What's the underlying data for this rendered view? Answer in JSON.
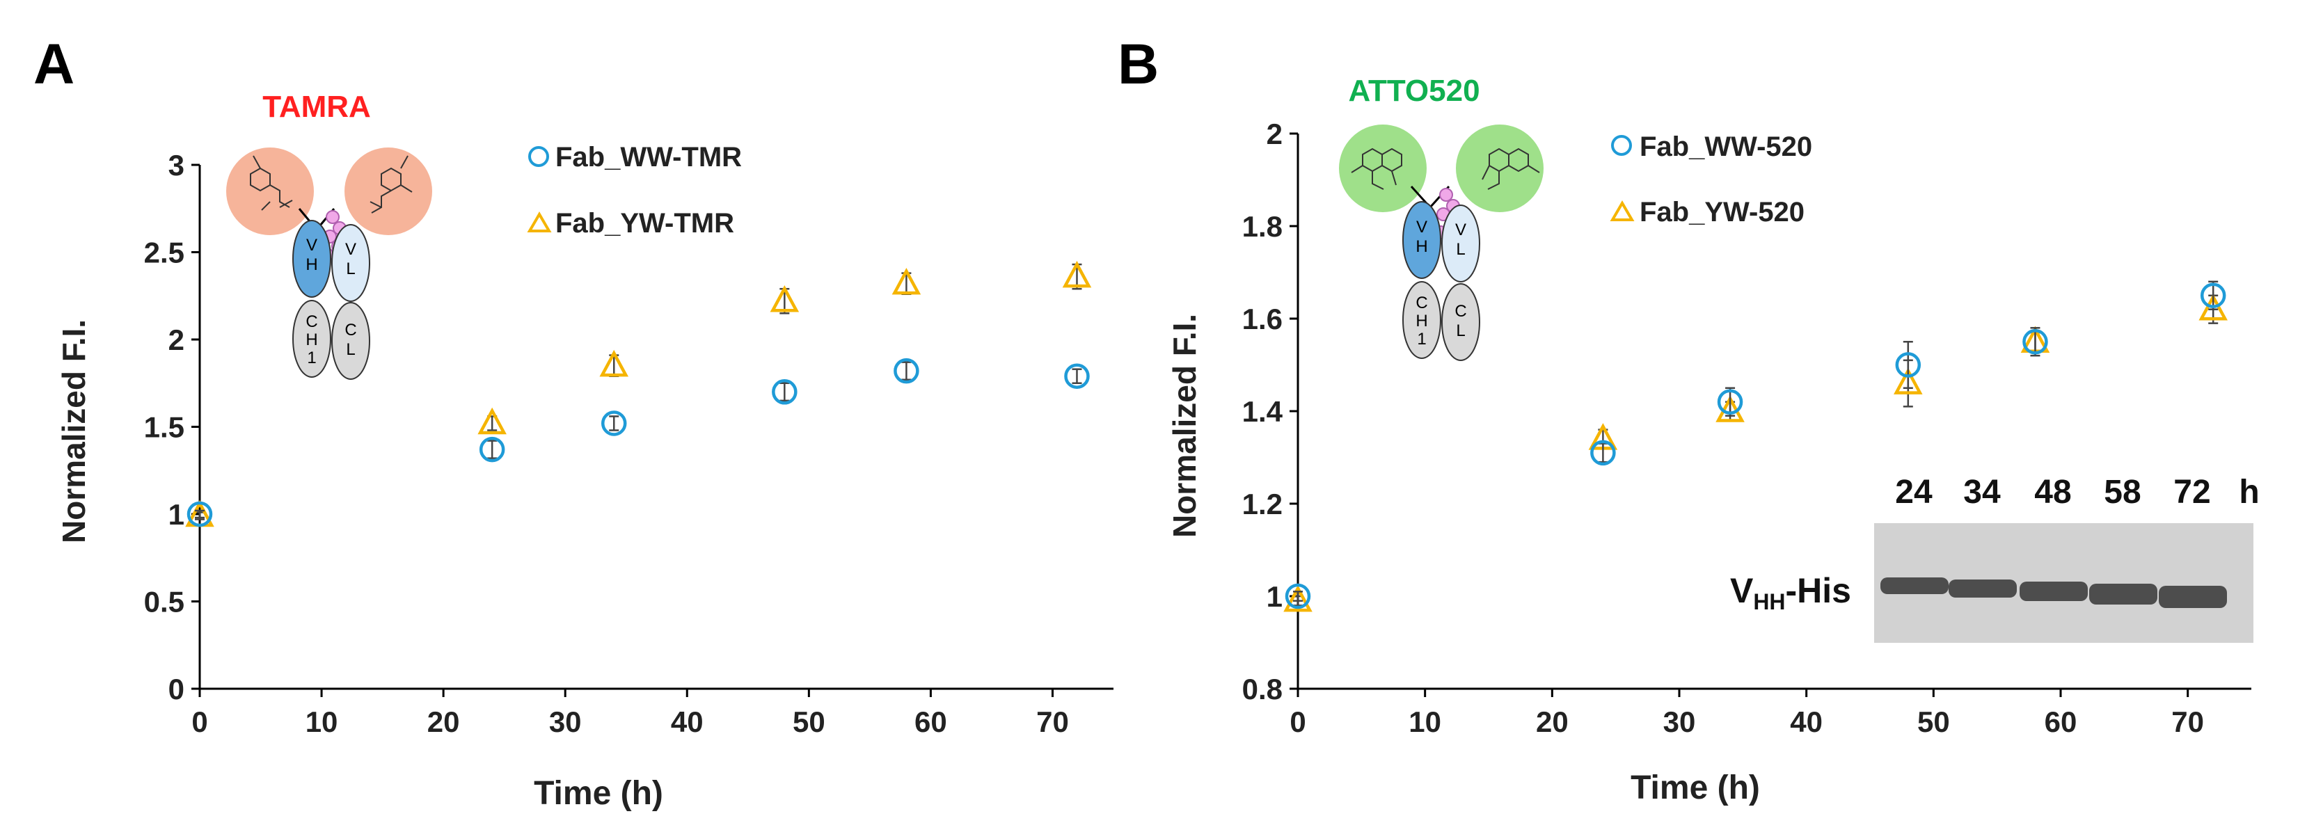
{
  "chart_data": [
    {
      "type": "scatter",
      "panel_label": "A",
      "dye_label": "TAMRA",
      "xlabel": "Time (h)",
      "ylabel": "Normalized F.I.",
      "xlim": [
        0,
        75
      ],
      "ylim": [
        0,
        3
      ],
      "xticks": [
        "0",
        "10",
        "20",
        "30",
        "40",
        "50",
        "60",
        "70"
      ],
      "yticks": [
        "0",
        "0.5",
        "1",
        "1.5",
        "2",
        "2.5",
        "3"
      ],
      "series": [
        {
          "name": "Fab_WW-TMR",
          "marker": "circle",
          "color": "#1f9bd7",
          "x": [
            0,
            24,
            34,
            48,
            58,
            72
          ],
          "y": [
            1.0,
            1.37,
            1.52,
            1.7,
            1.82,
            1.79
          ],
          "err": [
            0.02,
            0.05,
            0.04,
            0.05,
            0.05,
            0.04
          ]
        },
        {
          "name": "Fab_YW-TMR",
          "marker": "triangle",
          "color": "#f5b400",
          "x": [
            0,
            24,
            34,
            48,
            58,
            72
          ],
          "y": [
            0.99,
            1.52,
            1.85,
            2.22,
            2.32,
            2.36
          ],
          "err": [
            0.02,
            0.04,
            0.06,
            0.07,
            0.06,
            0.07
          ]
        }
      ],
      "antibody_labels": {
        "vh": [
          "V",
          "H"
        ],
        "vl": [
          "V",
          "L"
        ],
        "ch1": [
          "C",
          "H",
          "1"
        ],
        "cl": [
          "C",
          "L"
        ]
      }
    },
    {
      "type": "scatter",
      "panel_label": "B",
      "dye_label": "ATTO520",
      "xlabel": "Time (h)",
      "ylabel": "Normalized F.I.",
      "xlim": [
        0,
        75
      ],
      "ylim": [
        0.8,
        2
      ],
      "xticks": [
        "0",
        "10",
        "20",
        "30",
        "40",
        "50",
        "60",
        "70"
      ],
      "yticks": [
        "0.8",
        "1",
        "1.2",
        "1.4",
        "1.6",
        "1.8",
        "2"
      ],
      "series": [
        {
          "name": "Fab_WW-520",
          "marker": "circle",
          "color": "#1f9bd7",
          "x": [
            0,
            24,
            34,
            48,
            58,
            72
          ],
          "y": [
            1.0,
            1.31,
            1.42,
            1.5,
            1.55,
            1.65
          ],
          "err": [
            0.01,
            0.02,
            0.03,
            0.05,
            0.03,
            0.03
          ]
        },
        {
          "name": "Fab_YW-520",
          "marker": "triangle",
          "color": "#f5b400",
          "x": [
            0,
            24,
            34,
            48,
            58,
            72
          ],
          "y": [
            0.99,
            1.34,
            1.4,
            1.46,
            1.55,
            1.62
          ],
          "err": [
            0.01,
            0.02,
            0.02,
            0.05,
            0.02,
            0.03
          ]
        }
      ],
      "antibody_labels": {
        "vh": [
          "V",
          "H"
        ],
        "vl": [
          "V",
          "L"
        ],
        "ch1": [
          "C",
          "H",
          "1"
        ],
        "cl": [
          "C",
          "L"
        ]
      },
      "gel_inset": {
        "lane_labels": [
          "24",
          "34",
          "48",
          "58",
          "72"
        ],
        "unit": "h",
        "band_label_main": "V",
        "band_label_sub": "HH",
        "band_label_suffix": "-His"
      }
    }
  ],
  "colors": {
    "circle": "#1f9bd7",
    "triangle": "#f5b400",
    "tamra": "#ff2020",
    "atto": "#10b050",
    "tamra_blob": "#f6b49a",
    "atto_blob": "#9fe08a",
    "vh_fill": "#5fa6dc",
    "vl_fill": "#dcebf8",
    "const_fill": "#d9d9d9"
  }
}
